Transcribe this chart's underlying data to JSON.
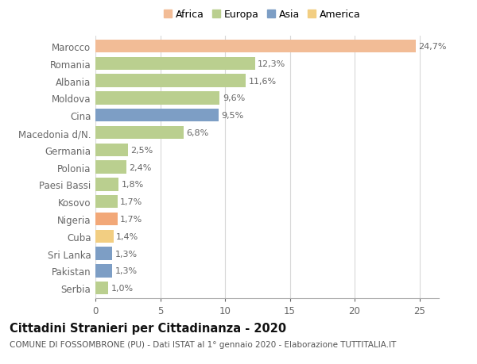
{
  "categories": [
    "Marocco",
    "Romania",
    "Albania",
    "Moldova",
    "Cina",
    "Macedonia d/N.",
    "Germania",
    "Polonia",
    "Paesi Bassi",
    "Kosovo",
    "Nigeria",
    "Cuba",
    "Sri Lanka",
    "Pakistan",
    "Serbia"
  ],
  "values": [
    24.7,
    12.3,
    11.6,
    9.6,
    9.5,
    6.8,
    2.5,
    2.4,
    1.8,
    1.7,
    1.7,
    1.4,
    1.3,
    1.3,
    1.0
  ],
  "labels": [
    "24,7%",
    "12,3%",
    "11,6%",
    "9,6%",
    "9,5%",
    "6,8%",
    "2,5%",
    "2,4%",
    "1,8%",
    "1,7%",
    "1,7%",
    "1,4%",
    "1,3%",
    "1,3%",
    "1,0%"
  ],
  "colors": [
    "#F2BC96",
    "#BACF8F",
    "#BACF8F",
    "#BACF8F",
    "#7D9EC5",
    "#BACF8F",
    "#BACF8F",
    "#BACF8F",
    "#BACF8F",
    "#BACF8F",
    "#F2A878",
    "#F2CE82",
    "#7D9EC5",
    "#7D9EC5",
    "#BACF8F"
  ],
  "legend": {
    "Africa": "#F2BC96",
    "Europa": "#BACF8F",
    "Asia": "#7D9EC5",
    "America": "#F2CE82"
  },
  "title": "Cittadini Stranieri per Cittadinanza - 2020",
  "subtitle": "COMUNE DI FOSSOMBRONE (PU) - Dati ISTAT al 1° gennaio 2020 - Elaborazione TUTTITALIA.IT",
  "xlim": [
    0,
    26.5
  ],
  "xticks": [
    0,
    5,
    10,
    15,
    20,
    25
  ],
  "background_color": "#ffffff",
  "grid_color": "#d8d8d8",
  "bar_height": 0.75,
  "title_fontsize": 10.5,
  "subtitle_fontsize": 7.5,
  "tick_fontsize": 8.5,
  "label_fontsize": 8.0,
  "label_color": "#666666",
  "ytick_color": "#666666"
}
